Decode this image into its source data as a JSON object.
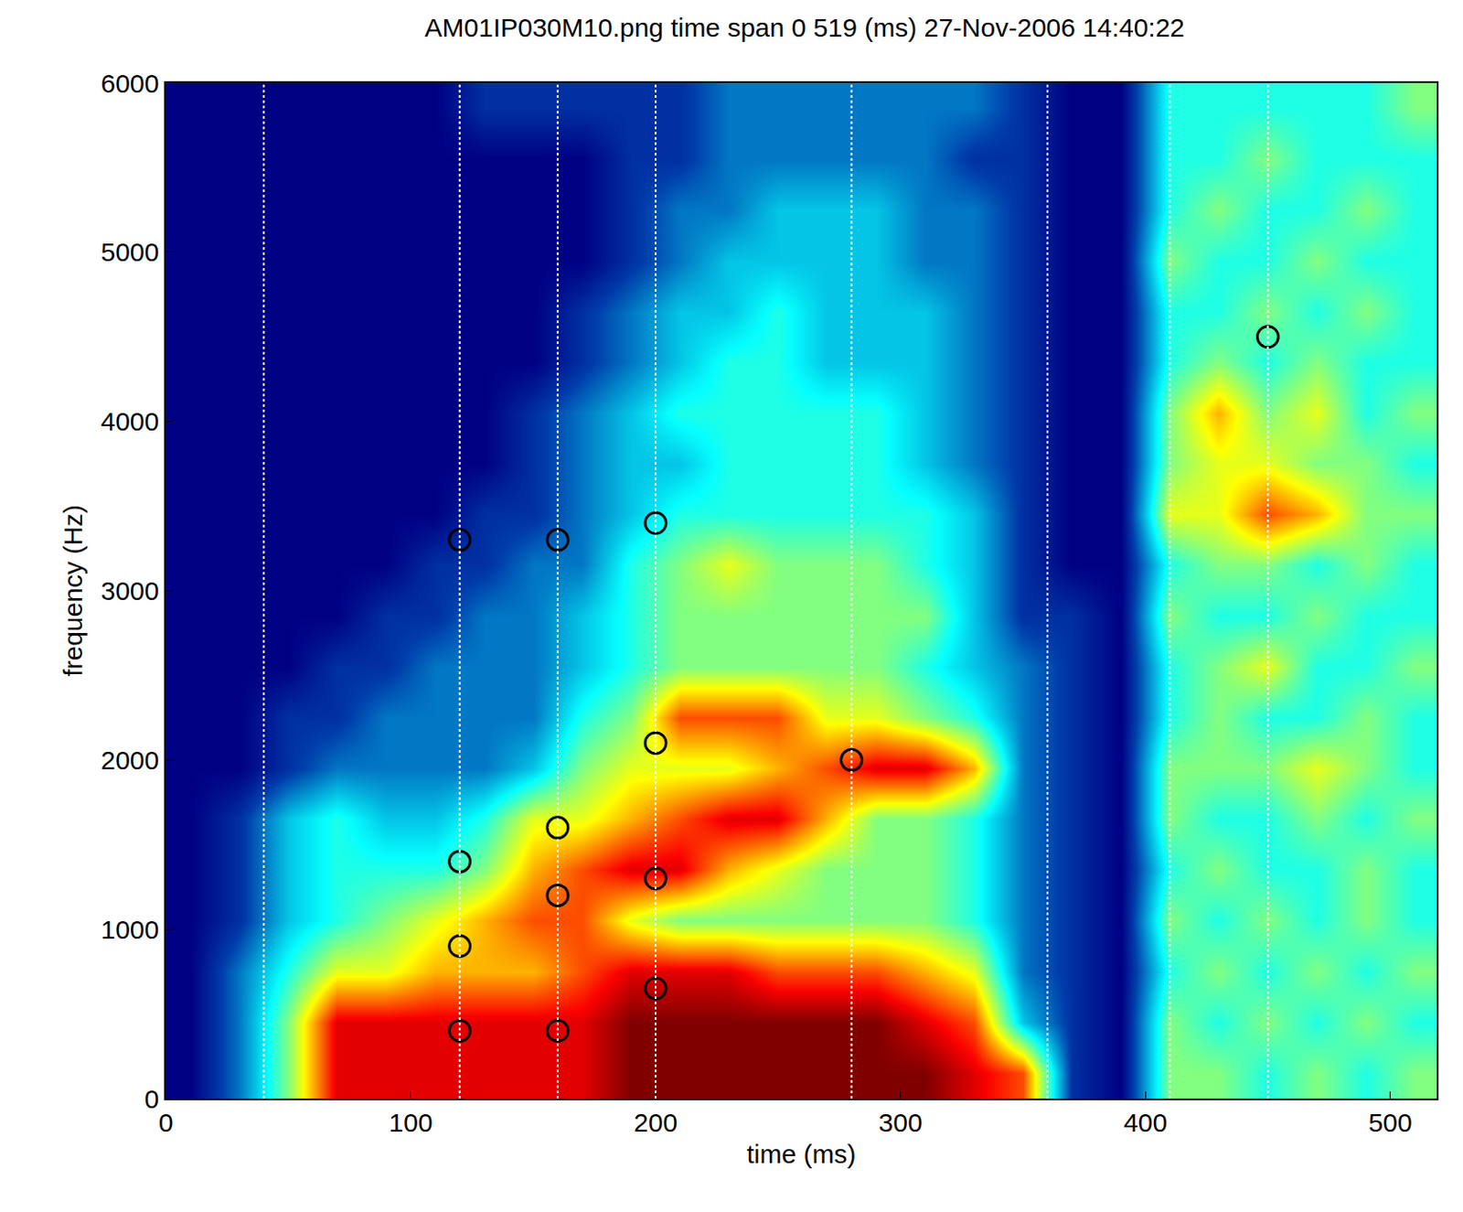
{
  "chart_data": {
    "type": "heatmap",
    "title": "AM01IP030M10.png time span 0 519 (ms) 27-Nov-2006 14:40:22",
    "x_label": "time (ms)",
    "y_label": "frequency (Hz)",
    "xlim": [
      0,
      519
    ],
    "ylim": [
      0,
      6000
    ],
    "xticks": [
      0,
      100,
      200,
      300,
      400,
      500
    ],
    "yticks": [
      0,
      1000,
      2000,
      3000,
      4000,
      5000,
      6000
    ],
    "grid": false,
    "x": [
      10,
      30,
      50,
      70,
      90,
      110,
      130,
      150,
      170,
      190,
      210,
      230,
      250,
      270,
      290,
      310,
      330,
      350,
      370,
      390,
      410,
      430,
      450,
      470,
      490,
      510
    ],
    "y": [
      150,
      450,
      750,
      1050,
      1350,
      1650,
      1950,
      2250,
      2550,
      2850,
      3150,
      3450,
      3750,
      4050,
      4350,
      4650,
      4950,
      5250,
      5550,
      5850
    ],
    "cells": [
      [
        0,
        2,
        5,
        9,
        9,
        9,
        9,
        9,
        9,
        10,
        10,
        10,
        10,
        10,
        10,
        10,
        9,
        8,
        1,
        0,
        5,
        5,
        4,
        5,
        4,
        5
      ],
      [
        0,
        2,
        5,
        9,
        9,
        9,
        9,
        9,
        9,
        10,
        10,
        10,
        10,
        10,
        10,
        9,
        8,
        3,
        1,
        0,
        5,
        4,
        5,
        4,
        5,
        4
      ],
      [
        0,
        2,
        4,
        6,
        6,
        7,
        7,
        7,
        8,
        9,
        9,
        9,
        8,
        8,
        8,
        7,
        6,
        2,
        1,
        0,
        4,
        5,
        4,
        5,
        4,
        5
      ],
      [
        0,
        1,
        3,
        4,
        5,
        6,
        7,
        8,
        8,
        6,
        5,
        5,
        5,
        5,
        5,
        5,
        4,
        2,
        1,
        0,
        5,
        4,
        5,
        4,
        5,
        4
      ],
      [
        0,
        1,
        3,
        4,
        4,
        4,
        5,
        7,
        8,
        9,
        9,
        7,
        6,
        5,
        5,
        5,
        4,
        2,
        1,
        0,
        4,
        5,
        4,
        4,
        5,
        4
      ],
      [
        0,
        1,
        3,
        4,
        3,
        3,
        4,
        6,
        6,
        7,
        8,
        9,
        9,
        7,
        5,
        5,
        4,
        2,
        1,
        0,
        5,
        4,
        4,
        5,
        4,
        5
      ],
      [
        0,
        0,
        1,
        2,
        2,
        2,
        2,
        3,
        5,
        6,
        6,
        6,
        7,
        8,
        9,
        9,
        7,
        2,
        1,
        0,
        5,
        5,
        5,
        6,
        5,
        4
      ],
      [
        0,
        0,
        1,
        1,
        2,
        2,
        2,
        2,
        4,
        5,
        8,
        8,
        8,
        6,
        6,
        5,
        4,
        2,
        1,
        0,
        4,
        5,
        4,
        4,
        5,
        4
      ],
      [
        0,
        0,
        0,
        1,
        1,
        2,
        2,
        2,
        3,
        4,
        5,
        5,
        5,
        5,
        5,
        4,
        3,
        2,
        1,
        0,
        4,
        5,
        6,
        4,
        4,
        5
      ],
      [
        0,
        0,
        0,
        0,
        1,
        1,
        2,
        2,
        3,
        4,
        5,
        5,
        5,
        5,
        5,
        5,
        3,
        1,
        1,
        0,
        5,
        4,
        4,
        5,
        4,
        4
      ],
      [
        0,
        0,
        0,
        0,
        0,
        1,
        1,
        2,
        2,
        4,
        5,
        6,
        5,
        5,
        5,
        4,
        3,
        1,
        0,
        0,
        4,
        5,
        5,
        4,
        5,
        4
      ],
      [
        0,
        0,
        0,
        0,
        0,
        0,
        1,
        1,
        2,
        3,
        4,
        4,
        4,
        4,
        4,
        4,
        3,
        1,
        0,
        0,
        6,
        6,
        8,
        7,
        5,
        5
      ],
      [
        0,
        0,
        0,
        0,
        0,
        0,
        0,
        1,
        2,
        3,
        3,
        4,
        4,
        4,
        4,
        3,
        2,
        1,
        0,
        0,
        5,
        6,
        6,
        5,
        5,
        4
      ],
      [
        0,
        0,
        0,
        0,
        0,
        0,
        0,
        1,
        2,
        3,
        4,
        4,
        4,
        4,
        4,
        3,
        2,
        1,
        0,
        0,
        5,
        7,
        5,
        6,
        4,
        5
      ],
      [
        0,
        0,
        0,
        0,
        0,
        0,
        0,
        0,
        1,
        2,
        3,
        4,
        4,
        3,
        3,
        3,
        2,
        1,
        0,
        0,
        4,
        5,
        4,
        5,
        4,
        4
      ],
      [
        0,
        0,
        0,
        0,
        0,
        0,
        0,
        0,
        1,
        2,
        3,
        3,
        4,
        3,
        3,
        3,
        2,
        1,
        0,
        0,
        4,
        4,
        5,
        4,
        5,
        4
      ],
      [
        0,
        0,
        0,
        0,
        0,
        0,
        0,
        0,
        0,
        1,
        2,
        3,
        3,
        3,
        3,
        2,
        2,
        1,
        0,
        0,
        5,
        4,
        4,
        5,
        4,
        4
      ],
      [
        0,
        0,
        0,
        0,
        0,
        0,
        0,
        0,
        0,
        1,
        2,
        2,
        3,
        3,
        3,
        2,
        2,
        1,
        0,
        0,
        4,
        5,
        4,
        4,
        5,
        4
      ],
      [
        0,
        0,
        0,
        0,
        0,
        0,
        0,
        0,
        0,
        1,
        1,
        2,
        2,
        2,
        2,
        2,
        1,
        1,
        0,
        0,
        4,
        4,
        5,
        4,
        4,
        4
      ],
      [
        0,
        0,
        0,
        0,
        0,
        0,
        1,
        1,
        1,
        1,
        1,
        2,
        2,
        2,
        2,
        2,
        2,
        1,
        0,
        0,
        4,
        4,
        4,
        4,
        4,
        5
      ]
    ],
    "points": {
      "x": [
        120,
        120,
        120,
        120,
        160,
        160,
        160,
        160,
        200,
        200,
        200,
        200,
        280,
        450
      ],
      "y": [
        400,
        900,
        1400,
        3300,
        400,
        1200,
        1600,
        3300,
        650,
        1300,
        2100,
        3400,
        2000,
        4500
      ],
      "marker": "open circle",
      "color": "#000000"
    },
    "vlines": {
      "x": [
        40,
        120,
        160,
        200,
        280,
        360,
        410,
        450
      ],
      "line_style": "dotted",
      "color": "#ffffff"
    }
  }
}
